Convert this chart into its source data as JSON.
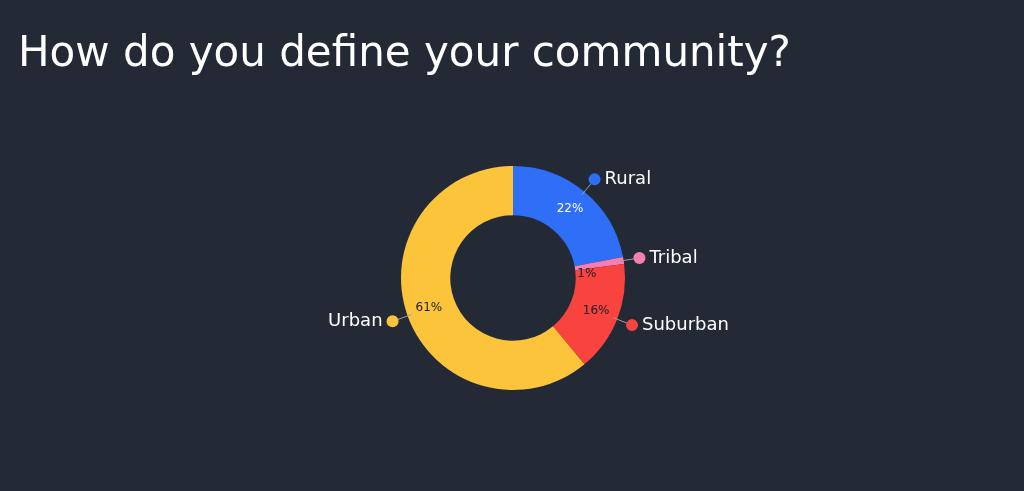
{
  "chart_data": {
    "type": "donut",
    "title": "How do you define your community?",
    "categories": [
      "Rural",
      "Tribal",
      "Suburban",
      "Urban"
    ],
    "values": [
      22,
      1,
      16,
      61
    ],
    "colors": [
      "#2f6ef6",
      "#f77fb0",
      "#f8433f",
      "#fcc43a"
    ],
    "value_labels": [
      "22%",
      "1%",
      "16%",
      "61%"
    ],
    "legend": "right"
  }
}
